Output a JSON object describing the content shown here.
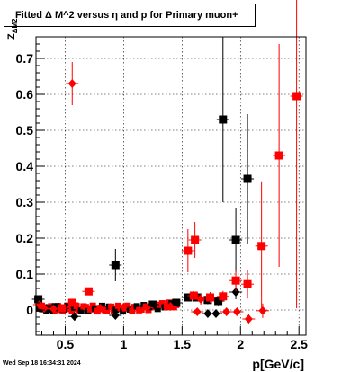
{
  "title": "Fitted Δ M^2 versus η and p for Primary muon+",
  "timestamp": "Wed Sep 18 16:34:31 2024",
  "colors": {
    "black_series": "#000000",
    "red_series": "#ff0000",
    "frame": "#000000",
    "grid": "#000000"
  },
  "chart_data": {
    "type": "scatter",
    "title": "Fitted Δ M^2 versus η and p for Primary muon+",
    "xlabel": "p[GeV/c]",
    "ylabel": "Z",
    "ylabel_sub": "ΔM2",
    "xlim": [
      0.25,
      2.56
    ],
    "ylim": [
      -0.07,
      0.76
    ],
    "grid": true,
    "x_ticks": [
      0.5,
      1,
      1.5,
      2,
      2.5
    ],
    "x_tick_labels": [
      "0.5",
      "1",
      "1.5",
      "2",
      "2.5"
    ],
    "y_ticks": [
      0,
      0.1,
      0.2,
      0.3,
      0.4,
      0.5,
      0.6,
      0.7
    ],
    "y_tick_labels": [
      "0",
      "0.1",
      "0.2",
      "0.3",
      "0.4",
      "0.5",
      "0.6",
      "0.7"
    ],
    "series": [
      {
        "color": "#000000",
        "points": [
          {
            "x": 0.27,
            "y": 0.03,
            "ey": 0.005,
            "m": "s"
          },
          {
            "x": 0.31,
            "y": 0.005,
            "ey": 0.004,
            "m": "s"
          },
          {
            "x": 0.36,
            "y": 0.003,
            "ey": 0.004,
            "m": "s"
          },
          {
            "x": 0.42,
            "y": 0.008,
            "ey": 0.004,
            "m": "s"
          },
          {
            "x": 0.48,
            "y": 0.004,
            "ey": 0.004,
            "m": "s"
          },
          {
            "x": 0.58,
            "y": -0.018,
            "ey": 0.005,
            "m": "d"
          },
          {
            "x": 0.93,
            "y": 0.125,
            "ey": 0.045,
            "m": "s"
          },
          {
            "x": 0.93,
            "y": -0.015,
            "ey": 0.006,
            "m": "d"
          },
          {
            "x": 1.25,
            "y": 0.015,
            "ey": 0.005,
            "m": "s"
          },
          {
            "x": 1.45,
            "y": 0.02,
            "ey": 0.006,
            "m": "s"
          },
          {
            "x": 1.55,
            "y": 0.035,
            "ey": 0.01,
            "m": "s"
          },
          {
            "x": 1.63,
            "y": 0.035,
            "ey": 0.01,
            "m": "s"
          },
          {
            "x": 1.72,
            "y": 0.028,
            "ey": 0.012,
            "m": "s"
          },
          {
            "x": 1.81,
            "y": 0.025,
            "ey": 0.012,
            "m": "s"
          },
          {
            "x": 1.85,
            "y": 0.53,
            "ey": 0.23,
            "m": "s"
          },
          {
            "x": 1.72,
            "y": -0.01,
            "ey": 0.005,
            "m": "d"
          },
          {
            "x": 1.79,
            "y": -0.01,
            "ey": 0.005,
            "m": "d"
          },
          {
            "x": 1.96,
            "y": 0.195,
            "ey": 0.09,
            "m": "s"
          },
          {
            "x": 1.96,
            "y": 0.05,
            "ey": 0.02,
            "m": "d"
          },
          {
            "x": 2.06,
            "y": 0.365,
            "ey": 0.18,
            "m": "s"
          }
        ]
      },
      {
        "color": "#ff0000",
        "points": [
          {
            "x": 0.28,
            "y": 0.015,
            "ey": 0.005,
            "m": "d"
          },
          {
            "x": 0.32,
            "y": 0.005,
            "ey": 0.004,
            "m": "d"
          },
          {
            "x": 0.4,
            "y": 0.003,
            "ey": 0.004,
            "m": "d"
          },
          {
            "x": 0.47,
            "y": 0.005,
            "ey": 0.004,
            "m": "s"
          },
          {
            "x": 0.56,
            "y": 0.63,
            "ey": 0.06,
            "m": "d"
          },
          {
            "x": 0.56,
            "y": 0.02,
            "ey": 0.01,
            "m": "s"
          },
          {
            "x": 0.7,
            "y": 0.052,
            "ey": 0.01,
            "m": "s"
          },
          {
            "x": 0.8,
            "y": 0.005,
            "ey": 0.005,
            "m": "d"
          },
          {
            "x": 1.0,
            "y": 0.008,
            "ey": 0.005,
            "m": "d"
          },
          {
            "x": 1.2,
            "y": 0.006,
            "ey": 0.005,
            "m": "d"
          },
          {
            "x": 1.4,
            "y": 0.01,
            "ey": 0.006,
            "m": "d"
          },
          {
            "x": 1.55,
            "y": 0.165,
            "ey": 0.06,
            "m": "s"
          },
          {
            "x": 1.61,
            "y": 0.195,
            "ey": 0.05,
            "m": "s"
          },
          {
            "x": 1.6,
            "y": 0.04,
            "ey": 0.012,
            "m": "s"
          },
          {
            "x": 1.66,
            "y": 0.03,
            "ey": 0.015,
            "m": "d"
          },
          {
            "x": 1.74,
            "y": 0.035,
            "ey": 0.015,
            "m": "s"
          },
          {
            "x": 1.85,
            "y": 0.038,
            "ey": 0.015,
            "m": "s"
          },
          {
            "x": 1.96,
            "y": 0.082,
            "ey": 0.03,
            "m": "s"
          },
          {
            "x": 2.06,
            "y": 0.072,
            "ey": 0.04,
            "m": "s"
          },
          {
            "x": 1.63,
            "y": -0.005,
            "ey": 0.01,
            "m": "d"
          },
          {
            "x": 1.88,
            "y": -0.005,
            "ey": 0.01,
            "m": "d"
          },
          {
            "x": 1.97,
            "y": -0.005,
            "ey": 0.01,
            "m": "d"
          },
          {
            "x": 2.07,
            "y": -0.025,
            "ey": 0.015,
            "m": "d"
          },
          {
            "x": 2.19,
            "y": -0.002,
            "ey": 0.02,
            "m": "d"
          },
          {
            "x": 2.18,
            "y": 0.178,
            "ey": 0.18,
            "m": "s"
          },
          {
            "x": 2.33,
            "y": 0.43,
            "ey": 0.31,
            "m": "s"
          },
          {
            "x": 2.48,
            "y": 0.595,
            "ey": 0.59,
            "m": "s"
          }
        ]
      }
    ]
  }
}
